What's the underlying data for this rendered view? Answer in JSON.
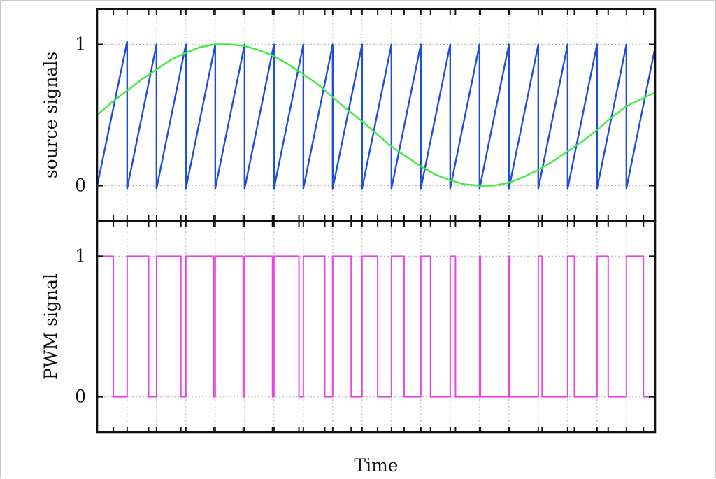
{
  "chart_data": {
    "type": "line",
    "xlabel": "Time",
    "grid": true,
    "colors": {
      "sawtooth": "#1f4fd8",
      "sine": "#42ea42",
      "pwm": "#ea45e4"
    },
    "panels": [
      {
        "ylabel": "source signals",
        "ylim": [
          -0.25,
          1.25
        ],
        "yticks": [
          {
            "value": 0,
            "label": "0"
          },
          {
            "value": 1,
            "label": "1"
          }
        ],
        "series": [
          {
            "kind": "sawtooth",
            "color": "#1f4fd8",
            "x": [
              0,
              1.02,
              1.02,
              2.02,
              2.02,
              3.02,
              3.02,
              4.02,
              4.02,
              5.02,
              5.02,
              6.02,
              6.02,
              7.02,
              7.02,
              8.02,
              8.02,
              9.02,
              9.02,
              10.02,
              10.02,
              11.02,
              11.02,
              12.02,
              12.02,
              13.02,
              13.02,
              14.02,
              14.02,
              15.02,
              15.02,
              16.02,
              16.02,
              17.02,
              17.02,
              18.02,
              18.02,
              19.0
            ],
            "y": [
              0,
              1.02,
              -0.02,
              1.0,
              -0.02,
              1.0,
              -0.02,
              1.0,
              -0.02,
              1.0,
              -0.02,
              1.0,
              -0.02,
              1.0,
              -0.02,
              1.0,
              -0.02,
              1.0,
              -0.02,
              1.0,
              -0.02,
              1.0,
              -0.02,
              1.0,
              -0.02,
              1.0,
              -0.02,
              1.0,
              -0.02,
              1.0,
              -0.02,
              1.0,
              -0.02,
              1.0,
              -0.02,
              1.0,
              -0.02,
              0.98
            ]
          },
          {
            "kind": "sine",
            "color": "#42ea42",
            "x": [
              0,
              0.5,
              1,
              1.5,
              2,
              2.5,
              3,
              3.5,
              4,
              4.5,
              5,
              5.5,
              6,
              6.5,
              7,
              7.5,
              8,
              8.5,
              9,
              9.5,
              10,
              10.5,
              11,
              11.5,
              12,
              12.5,
              13,
              13.5,
              14,
              14.5,
              15,
              15.5,
              16,
              16.5,
              17,
              17.5,
              18,
              18.5,
              19
            ],
            "y": [
              0.5,
              0.59,
              0.67,
              0.75,
              0.82,
              0.89,
              0.94,
              0.98,
              1.0,
              1.0,
              0.99,
              0.96,
              0.92,
              0.86,
              0.79,
              0.72,
              0.63,
              0.54,
              0.46,
              0.37,
              0.28,
              0.21,
              0.14,
              0.08,
              0.04,
              0.01,
              0.0,
              0.0,
              0.02,
              0.06,
              0.11,
              0.17,
              0.24,
              0.31,
              0.39,
              0.48,
              0.56,
              0.61,
              0.66
            ]
          }
        ]
      },
      {
        "ylabel": "PWM signal",
        "ylim": [
          -0.25,
          1.25
        ],
        "yticks": [
          {
            "value": 0,
            "label": "0"
          },
          {
            "value": 1,
            "label": "1"
          }
        ],
        "series": [
          {
            "kind": "pwm",
            "color": "#ea45e4",
            "x": [
              0,
              0.55,
              0.55,
              1.02,
              1.02,
              1.75,
              1.75,
              2.02,
              2.02,
              2.85,
              2.85,
              3.02,
              3.02,
              3.97,
              3.97,
              4.02,
              4.02,
              4.97,
              4.97,
              5.02,
              5.02,
              5.97,
              5.97,
              6.02,
              6.02,
              6.87,
              6.87,
              7.02,
              7.02,
              7.75,
              7.75,
              8.02,
              8.02,
              8.65,
              8.65,
              9.02,
              9.02,
              9.55,
              9.55,
              10.02,
              10.02,
              10.45,
              10.45,
              11.02,
              11.02,
              11.35,
              11.35,
              12.02,
              12.02,
              12.2,
              12.2,
              13.02,
              13.02,
              13.05,
              13.05,
              14.02,
              14.02,
              14.05,
              14.05,
              15.02,
              15.02,
              15.15,
              15.15,
              16.02,
              16.02,
              16.25,
              16.25,
              17.02,
              17.02,
              17.4,
              17.4,
              18.02,
              18.02,
              18.6,
              18.6,
              19.0
            ],
            "y": [
              1,
              1,
              0,
              0,
              1,
              1,
              0,
              0,
              1,
              1,
              0,
              0,
              1,
              1,
              0,
              0,
              1,
              1,
              0,
              0,
              1,
              1,
              0,
              0,
              1,
              1,
              0,
              0,
              1,
              1,
              0,
              0,
              1,
              1,
              0,
              0,
              1,
              1,
              0,
              0,
              1,
              1,
              0,
              0,
              1,
              1,
              0,
              0,
              1,
              1,
              0,
              0,
              1,
              1,
              0,
              0,
              1,
              1,
              0,
              0,
              1,
              1,
              0,
              0,
              1,
              1,
              0,
              0,
              1,
              1,
              0,
              0,
              1,
              1,
              0,
              0
            ]
          }
        ]
      }
    ],
    "xlim": [
      0,
      19
    ],
    "vertical_grid_x": [
      1.02,
      2.02,
      3.02,
      4.02,
      5.02,
      6.02,
      7.02,
      8.02,
      9.02,
      10.02,
      11.02,
      12.02,
      13.02,
      14.02,
      15.02,
      16.02,
      17.02,
      18.02
    ],
    "x_ticks_x": [
      0.55,
      1.02,
      1.75,
      2.02,
      2.85,
      3.02,
      3.97,
      4.02,
      4.97,
      5.02,
      5.97,
      6.02,
      6.87,
      7.02,
      7.75,
      8.02,
      8.65,
      9.02,
      9.55,
      10.02,
      10.45,
      11.02,
      11.35,
      12.02,
      12.2,
      13.02,
      13.05,
      14.02,
      14.05,
      15.02,
      15.15,
      16.02,
      16.25,
      17.02,
      17.4,
      18.02,
      18.6
    ]
  }
}
